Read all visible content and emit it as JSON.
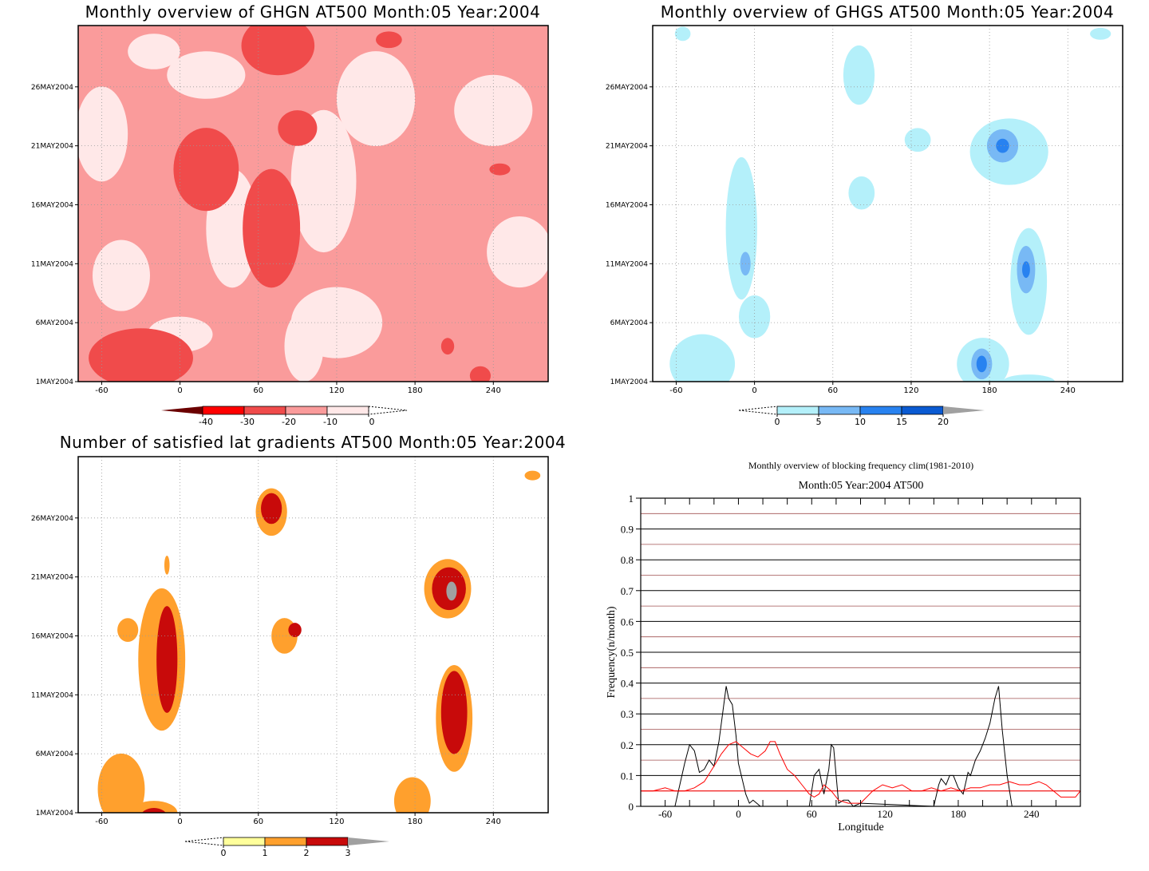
{
  "chart_data": [
    {
      "type": "heatmap",
      "title": "Monthly overview of GHGN AT500 Month:05 Year:2004",
      "x_ticks": [
        -60,
        0,
        60,
        120,
        180,
        240
      ],
      "y_ticks": [
        "1MAY2004",
        "6MAY2004",
        "11MAY2004",
        "16MAY2004",
        "21MAY2004",
        "26MAY2004"
      ],
      "xlim": [
        -78,
        282
      ],
      "colorbar": {
        "labels": [
          "-40",
          "-30",
          "-20",
          "-10",
          "0"
        ],
        "levels": [
          -40,
          -30,
          -20,
          -10,
          0
        ],
        "colors": [
          "#6b0000",
          "#ff0000",
          "#f04b4b",
          "#fa9b9b",
          "#ffe8e8"
        ]
      },
      "blobs": [
        {
          "lon": -30,
          "day": 3,
          "rx": 40,
          "ry": 2.5,
          "level": -20
        },
        {
          "lon": 20,
          "day": 19,
          "rx": 25,
          "ry": 3.5,
          "level": -20
        },
        {
          "lon": 70,
          "day": 14,
          "rx": 22,
          "ry": 5,
          "level": -20
        },
        {
          "lon": 75,
          "day": 29.5,
          "rx": 28,
          "ry": 2.5,
          "level": -20
        },
        {
          "lon": 90,
          "day": 22.5,
          "rx": 15,
          "ry": 1.5,
          "level": -20
        },
        {
          "lon": 160,
          "day": 30,
          "rx": 10,
          "ry": 0.7,
          "level": -20
        },
        {
          "lon": 245,
          "day": 19,
          "rx": 8,
          "ry": 0.5,
          "level": -20
        },
        {
          "lon": 205,
          "day": 4,
          "rx": 5,
          "ry": 0.7,
          "level": -20
        },
        {
          "lon": 230,
          "day": 1.5,
          "rx": 8,
          "ry": 0.8,
          "level": -20
        }
      ]
    },
    {
      "type": "heatmap",
      "title": "Monthly overview of GHGS AT500 Month:05 Year:2004",
      "x_ticks": [
        -60,
        0,
        60,
        120,
        180,
        240
      ],
      "y_ticks": [
        "1MAY2004",
        "6MAY2004",
        "11MAY2004",
        "16MAY2004",
        "21MAY2004",
        "26MAY2004"
      ],
      "xlim": [
        -78,
        282
      ],
      "colorbar": {
        "labels": [
          "0",
          "5",
          "10",
          "15",
          "20"
        ],
        "levels": [
          0,
          5,
          10,
          15,
          20
        ],
        "colors": [
          "#b4f0fa",
          "#78b9f5",
          "#2882f0",
          "#0a5ad2",
          "#a0a0a0"
        ]
      },
      "blobs": [
        {
          "lon": -10,
          "day": 14,
          "rx": 12,
          "ry": 6,
          "level": 0
        },
        {
          "lon": -7,
          "day": 11,
          "rx": 4,
          "ry": 1,
          "level": 5
        },
        {
          "lon": 0,
          "day": 6.5,
          "rx": 12,
          "ry": 1.8,
          "level": 0
        },
        {
          "lon": -40,
          "day": 2.5,
          "rx": 25,
          "ry": 2.5,
          "level": 0
        },
        {
          "lon": 80,
          "day": 27,
          "rx": 12,
          "ry": 2.5,
          "level": 0
        },
        {
          "lon": 82,
          "day": 17,
          "rx": 10,
          "ry": 1.4,
          "level": 0
        },
        {
          "lon": 125,
          "day": 21.5,
          "rx": 10,
          "ry": 1,
          "level": 0
        },
        {
          "lon": 195,
          "day": 20.5,
          "rx": 30,
          "ry": 2.8,
          "level": 0
        },
        {
          "lon": 190,
          "day": 21,
          "rx": 12,
          "ry": 1.4,
          "level": 5
        },
        {
          "lon": 190,
          "day": 21,
          "rx": 5,
          "ry": 0.6,
          "level": 10
        },
        {
          "lon": 210,
          "day": 9.5,
          "rx": 14,
          "ry": 4.5,
          "level": 0
        },
        {
          "lon": 208,
          "day": 10.5,
          "rx": 7,
          "ry": 2,
          "level": 5
        },
        {
          "lon": 208,
          "day": 10.5,
          "rx": 3,
          "ry": 0.7,
          "level": 10
        },
        {
          "lon": 175,
          "day": 2.5,
          "rx": 20,
          "ry": 2.2,
          "level": 0
        },
        {
          "lon": 174,
          "day": 2.5,
          "rx": 8,
          "ry": 1.3,
          "level": 5
        },
        {
          "lon": 174,
          "day": 2.5,
          "rx": 4,
          "ry": 0.7,
          "level": 10
        },
        {
          "lon": 210,
          "day": 1,
          "rx": 20,
          "ry": 0.6,
          "level": 0
        },
        {
          "lon": -55,
          "day": 30.5,
          "rx": 6,
          "ry": 0.6,
          "level": 0
        },
        {
          "lon": 265,
          "day": 30.5,
          "rx": 8,
          "ry": 0.5,
          "level": 0
        }
      ]
    },
    {
      "type": "heatmap",
      "title": "Number of satisfied lat gradients AT500 Month:05 Year:2004",
      "x_ticks": [
        -60,
        0,
        60,
        120,
        180,
        240
      ],
      "y_ticks": [
        "1MAY2004",
        "6MAY2004",
        "11MAY2004",
        "16MAY2004",
        "21MAY2004",
        "26MAY2004"
      ],
      "xlim": [
        -78,
        282
      ],
      "colorbar": {
        "labels": [
          "0",
          "1",
          "2",
          "3"
        ],
        "levels": [
          0,
          1,
          2,
          3
        ],
        "colors": [
          "#ffff9b",
          "#ffa02d",
          "#c80a0a",
          "#a0a0a0"
        ]
      },
      "blobs": [
        {
          "lon": -14,
          "day": 14,
          "rx": 18,
          "ry": 6,
          "level": 1
        },
        {
          "lon": -10,
          "day": 14,
          "rx": 8,
          "ry": 4.5,
          "level": 2
        },
        {
          "lon": -40,
          "day": 16.5,
          "rx": 8,
          "ry": 1,
          "level": 1
        },
        {
          "lon": -45,
          "day": 3,
          "rx": 18,
          "ry": 3,
          "level": 1
        },
        {
          "lon": -20,
          "day": 1,
          "rx": 18,
          "ry": 1,
          "level": 1
        },
        {
          "lon": -20,
          "day": 0.7,
          "rx": 10,
          "ry": 0.7,
          "level": 2
        },
        {
          "lon": 70,
          "day": 26.5,
          "rx": 12,
          "ry": 2,
          "level": 1
        },
        {
          "lon": 70,
          "day": 26.8,
          "rx": 8,
          "ry": 1.3,
          "level": 2
        },
        {
          "lon": 80,
          "day": 16,
          "rx": 10,
          "ry": 1.5,
          "level": 1
        },
        {
          "lon": 88,
          "day": 16.5,
          "rx": 5,
          "ry": 0.6,
          "level": 2
        },
        {
          "lon": 205,
          "day": 20,
          "rx": 18,
          "ry": 2.5,
          "level": 1
        },
        {
          "lon": 206,
          "day": 20,
          "rx": 13,
          "ry": 1.8,
          "level": 2
        },
        {
          "lon": 208,
          "day": 19.8,
          "rx": 4,
          "ry": 0.8,
          "level": 3
        },
        {
          "lon": 210,
          "day": 9,
          "rx": 14,
          "ry": 4.5,
          "level": 1
        },
        {
          "lon": 210,
          "day": 9.5,
          "rx": 10,
          "ry": 3.5,
          "level": 2
        },
        {
          "lon": 178,
          "day": 2,
          "rx": 14,
          "ry": 2,
          "level": 1
        },
        {
          "lon": 205,
          "day": 0.5,
          "rx": 10,
          "ry": 0.5,
          "level": 1
        },
        {
          "lon": -10,
          "day": 22,
          "rx": 2,
          "ry": 0.8,
          "level": 1
        },
        {
          "lon": 270,
          "day": 29.6,
          "rx": 6,
          "ry": 0.4,
          "level": 1
        }
      ]
    },
    {
      "type": "line",
      "title": "Monthly overview of blocking frequency clim(1981-2010)",
      "subtitle": "Month:05 Year:2004  AT500",
      "xlabel": "Longitude",
      "ylabel": "Frequency(n/month)",
      "xlim": [
        -80,
        280
      ],
      "ylim": [
        0,
        1
      ],
      "x_ticks": [
        -60,
        0,
        60,
        120,
        180,
        240
      ],
      "y_ticks": [
        "0",
        "0.1",
        "0.2",
        "0.3",
        "0.4",
        "0.5",
        "0.6",
        "0.7",
        "0.8",
        "0.9",
        "1"
      ],
      "reference_line": 0.05,
      "series": [
        {
          "color": "#000000",
          "x": [
            -52,
            -48,
            -44,
            -40,
            -36,
            -32,
            -28,
            -24,
            -20,
            -16,
            -12,
            -10,
            -8,
            -5,
            -2,
            0,
            3,
            6,
            9,
            12,
            15,
            18,
            20,
            58,
            62,
            66,
            70,
            74,
            76,
            78,
            80,
            82,
            86,
            90,
            94,
            100,
            160,
            164,
            166,
            170,
            173,
            176,
            180,
            184,
            188,
            190,
            194,
            198,
            202,
            206,
            210,
            213,
            216,
            220,
            224
          ],
          "values": [
            0,
            0.07,
            0.14,
            0.2,
            0.18,
            0.11,
            0.12,
            0.15,
            0.13,
            0.21,
            0.33,
            0.39,
            0.35,
            0.33,
            0.23,
            0.14,
            0.09,
            0.04,
            0.01,
            0.02,
            0.01,
            0.0,
            0.0,
            0.0,
            0.1,
            0.12,
            0.04,
            0.12,
            0.2,
            0.19,
            0.1,
            0.01,
            0.02,
            0.02,
            0.0,
            0.01,
            0.0,
            0.07,
            0.09,
            0.07,
            0.1,
            0.1,
            0.06,
            0.04,
            0.11,
            0.1,
            0.15,
            0.18,
            0.22,
            0.27,
            0.35,
            0.39,
            0.25,
            0.1,
            0.0
          ]
        },
        {
          "color": "#ff0000",
          "x": [
            -80,
            -70,
            -60,
            -52,
            -44,
            -36,
            -28,
            -20,
            -14,
            -8,
            -2,
            4,
            10,
            16,
            22,
            26,
            30,
            34,
            40,
            46,
            52,
            58,
            62,
            66,
            70,
            76,
            82,
            90,
            100,
            110,
            118,
            126,
            134,
            142,
            150,
            158,
            166,
            174,
            182,
            190,
            198,
            206,
            214,
            222,
            230,
            238,
            246,
            252,
            258,
            264,
            270,
            276,
            280
          ],
          "values": [
            0.05,
            0.05,
            0.06,
            0.05,
            0.05,
            0.06,
            0.08,
            0.13,
            0.17,
            0.2,
            0.21,
            0.19,
            0.17,
            0.16,
            0.18,
            0.21,
            0.21,
            0.17,
            0.12,
            0.1,
            0.07,
            0.04,
            0.03,
            0.04,
            0.07,
            0.05,
            0.02,
            0.01,
            0.01,
            0.05,
            0.07,
            0.06,
            0.07,
            0.05,
            0.05,
            0.06,
            0.05,
            0.06,
            0.05,
            0.06,
            0.06,
            0.07,
            0.07,
            0.08,
            0.07,
            0.07,
            0.08,
            0.07,
            0.05,
            0.03,
            0.03,
            0.03,
            0.05
          ]
        }
      ]
    }
  ]
}
